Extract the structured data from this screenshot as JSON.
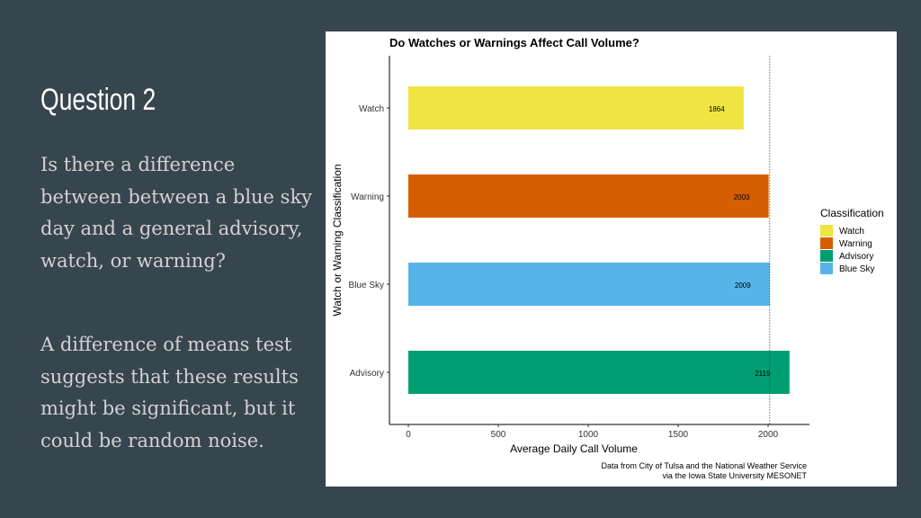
{
  "slide": {
    "title": "Question 2",
    "paragraph1": "Is there a difference between between a blue sky day and a general advisory, watch, or warning?",
    "paragraph2": "A difference of means test suggests  that these results might be significant,  but it could be random noise."
  },
  "colors": {
    "background": "#37454f",
    "watch": "#f0e442",
    "warning": "#d55e00",
    "blue_sky": "#56b4e9",
    "advisory": "#009e73"
  },
  "chart_data": {
    "type": "bar",
    "orientation": "horizontal",
    "title": "Do Watches or Warnings Affect Call Volume?",
    "xlabel": "Average Daily Call Volume",
    "ylabel": "Watch or Warning Classification",
    "categories": [
      "Watch",
      "Warning",
      "Blue Sky",
      "Advisory"
    ],
    "values": [
      1864,
      2003,
      2009,
      2119
    ],
    "value_labels": [
      "1864",
      "2003",
      "2009",
      "2119"
    ],
    "xlim": [
      0,
      2200
    ],
    "xticks": [
      0,
      500,
      1000,
      1500,
      2000
    ],
    "xtick_labels": [
      "0",
      "500",
      "1000",
      "1500",
      "2000"
    ],
    "reference_line": 2009,
    "grid": false,
    "legend": {
      "title": "Classification",
      "placement": "right",
      "entries": [
        "Watch",
        "Warning",
        "Advisory",
        "Blue Sky"
      ]
    },
    "caption": [
      "Data from City of Tulsa and the National Weather Service",
      "via the Iowa State University MESONET"
    ]
  }
}
